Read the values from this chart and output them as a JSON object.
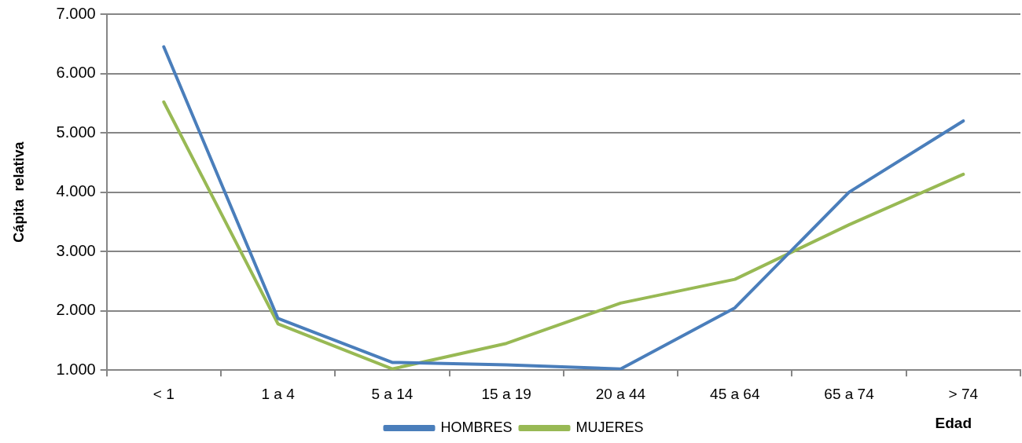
{
  "chart_data": {
    "type": "line",
    "ylabel": "Cápita  relativa",
    "xlabel": "Edad",
    "categories": [
      "< 1",
      "1 a 4",
      "5 a 14",
      "15 a 19",
      "20 a 44",
      "45 a 64",
      "65 a 74",
      "> 74"
    ],
    "series": [
      {
        "name": "HOMBRES",
        "color": "#4a7ebb",
        "values": [
          6.45,
          1.87,
          1.13,
          1.09,
          1.02,
          2.05,
          4.0,
          5.2
        ]
      },
      {
        "name": "MUJERES",
        "color": "#98b954",
        "values": [
          5.52,
          1.78,
          1.02,
          1.45,
          2.13,
          2.53,
          3.45,
          4.3
        ]
      }
    ],
    "ylim": [
      1,
      7
    ],
    "yticks": [
      {
        "value": 1,
        "label": "1.000"
      },
      {
        "value": 2,
        "label": "2.000"
      },
      {
        "value": 3,
        "label": "3.000"
      },
      {
        "value": 4,
        "label": "4.000"
      },
      {
        "value": 5,
        "label": "5.000"
      },
      {
        "value": 6,
        "label": "6.000"
      },
      {
        "value": 7,
        "label": "7.000"
      }
    ],
    "grid": "y",
    "legend": "bottom",
    "marker": "none",
    "line_style": "solid"
  }
}
